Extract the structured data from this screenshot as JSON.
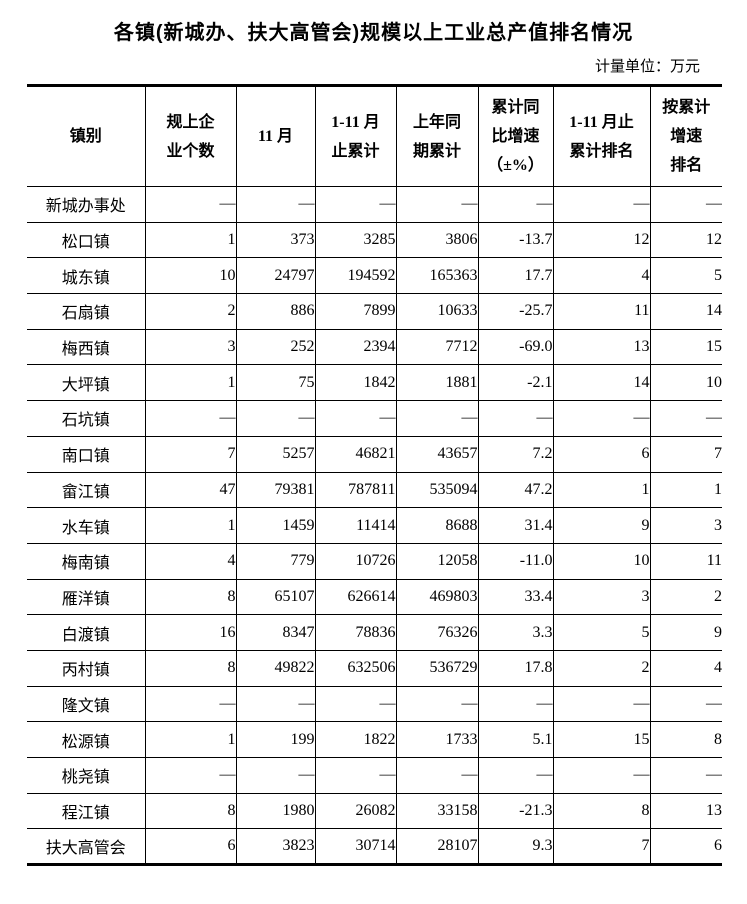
{
  "title": "各镇(新城办、扶大高管会)规模以上工业总产值排名情况",
  "unit_label": "计量单位：万元",
  "colors": {
    "text": "#000000",
    "background": "#ffffff",
    "border": "#000000"
  },
  "table": {
    "headers": [
      "镇别",
      "规上企\n业个数",
      "11 月",
      "1-11 月\n止累计",
      "上年同\n期累计",
      "累计同\n比增速\n（±%）",
      "1-11 月止\n累计排名",
      "按累计\n增速\n排名"
    ],
    "rows": [
      {
        "name": "新城办事处",
        "values": [
          "—",
          "—",
          "—",
          "—",
          "—",
          "—",
          "—"
        ]
      },
      {
        "name": "松口镇",
        "values": [
          "1",
          "373",
          "3285",
          "3806",
          "-13.7",
          "12",
          "12"
        ]
      },
      {
        "name": "城东镇",
        "values": [
          "10",
          "24797",
          "194592",
          "165363",
          "17.7",
          "4",
          "5"
        ]
      },
      {
        "name": "石扇镇",
        "values": [
          "2",
          "886",
          "7899",
          "10633",
          "-25.7",
          "11",
          "14"
        ]
      },
      {
        "name": "梅西镇",
        "values": [
          "3",
          "252",
          "2394",
          "7712",
          "-69.0",
          "13",
          "15"
        ]
      },
      {
        "name": "大坪镇",
        "values": [
          "1",
          "75",
          "1842",
          "1881",
          "-2.1",
          "14",
          "10"
        ]
      },
      {
        "name": "石坑镇",
        "values": [
          "—",
          "—",
          "—",
          "—",
          "—",
          "—",
          "—"
        ]
      },
      {
        "name": "南口镇",
        "values": [
          "7",
          "5257",
          "46821",
          "43657",
          "7.2",
          "6",
          "7"
        ]
      },
      {
        "name": "畲江镇",
        "values": [
          "47",
          "79381",
          "787811",
          "535094",
          "47.2",
          "1",
          "1"
        ]
      },
      {
        "name": "水车镇",
        "values": [
          "1",
          "1459",
          "11414",
          "8688",
          "31.4",
          "9",
          "3"
        ]
      },
      {
        "name": "梅南镇",
        "values": [
          "4",
          "779",
          "10726",
          "12058",
          "-11.0",
          "10",
          "11"
        ]
      },
      {
        "name": "雁洋镇",
        "values": [
          "8",
          "65107",
          "626614",
          "469803",
          "33.4",
          "3",
          "2"
        ]
      },
      {
        "name": "白渡镇",
        "values": [
          "16",
          "8347",
          "78836",
          "76326",
          "3.3",
          "5",
          "9"
        ]
      },
      {
        "name": "丙村镇",
        "values": [
          "8",
          "49822",
          "632506",
          "536729",
          "17.8",
          "2",
          "4"
        ]
      },
      {
        "name": "隆文镇",
        "values": [
          "—",
          "—",
          "—",
          "—",
          "—",
          "—",
          "—"
        ]
      },
      {
        "name": "松源镇",
        "values": [
          "1",
          "199",
          "1822",
          "1733",
          "5.1",
          "15",
          "8"
        ]
      },
      {
        "name": "桃尧镇",
        "values": [
          "—",
          "—",
          "—",
          "—",
          "—",
          "—",
          "—"
        ]
      },
      {
        "name": "程江镇",
        "values": [
          "8",
          "1980",
          "26082",
          "33158",
          "-21.3",
          "8",
          "13"
        ]
      },
      {
        "name": "扶大高管会",
        "values": [
          "6",
          "3823",
          "30714",
          "28107",
          "9.3",
          "7",
          "6"
        ]
      }
    ]
  }
}
